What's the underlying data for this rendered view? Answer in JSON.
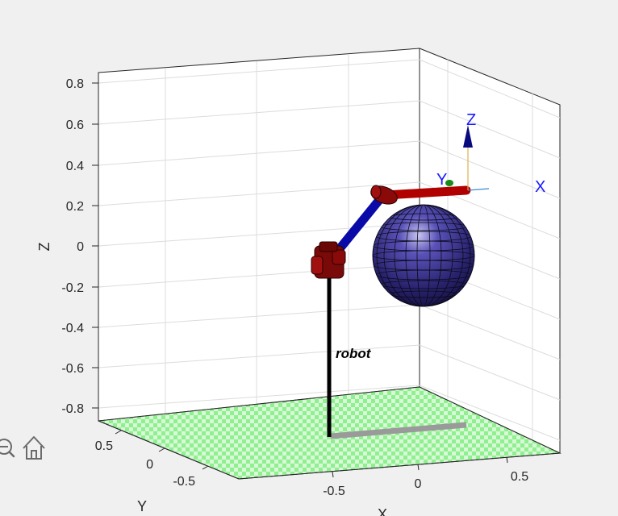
{
  "axes": {
    "z_ticks": [
      {
        "label": "0.8",
        "value": 0.8
      },
      {
        "label": "0.6",
        "value": 0.6
      },
      {
        "label": "0.4",
        "value": 0.4
      },
      {
        "label": "0.2",
        "value": 0.2
      },
      {
        "label": "0",
        "value": 0
      },
      {
        "label": "-0.2",
        "value": -0.2
      },
      {
        "label": "-0.4",
        "value": -0.4
      },
      {
        "label": "-0.6",
        "value": -0.6
      },
      {
        "label": "-0.8",
        "value": -0.8
      }
    ],
    "x_ticks": [
      {
        "label": "-0.5",
        "value": -0.5
      },
      {
        "label": "0",
        "value": 0
      },
      {
        "label": "0.5",
        "value": 0.5
      }
    ],
    "y_ticks": [
      {
        "label": "0.5",
        "value": 0.5
      },
      {
        "label": "0",
        "value": 0
      },
      {
        "label": "-0.5",
        "value": -0.5
      }
    ],
    "xlabel": "X",
    "ylabel": "Y",
    "zlabel": "Z"
  },
  "scene": {
    "robot_label": "robot",
    "frame_labels": {
      "x": "X",
      "y": "Y",
      "z": "Z"
    }
  },
  "toolbar": {
    "zoom_icon": "zoom-out-icon",
    "home_icon": "home-icon"
  },
  "colors": {
    "background": "#f0f0f0",
    "axes_bg": "#ffffff",
    "grid": "#dcdcdc",
    "floor": "#7fe87f",
    "link_blue": "#0a0aa8",
    "link_red": "#b00000",
    "joint": "#8a0a0a",
    "sphere": "#2a2470",
    "frame_label": "#1a1aff"
  }
}
